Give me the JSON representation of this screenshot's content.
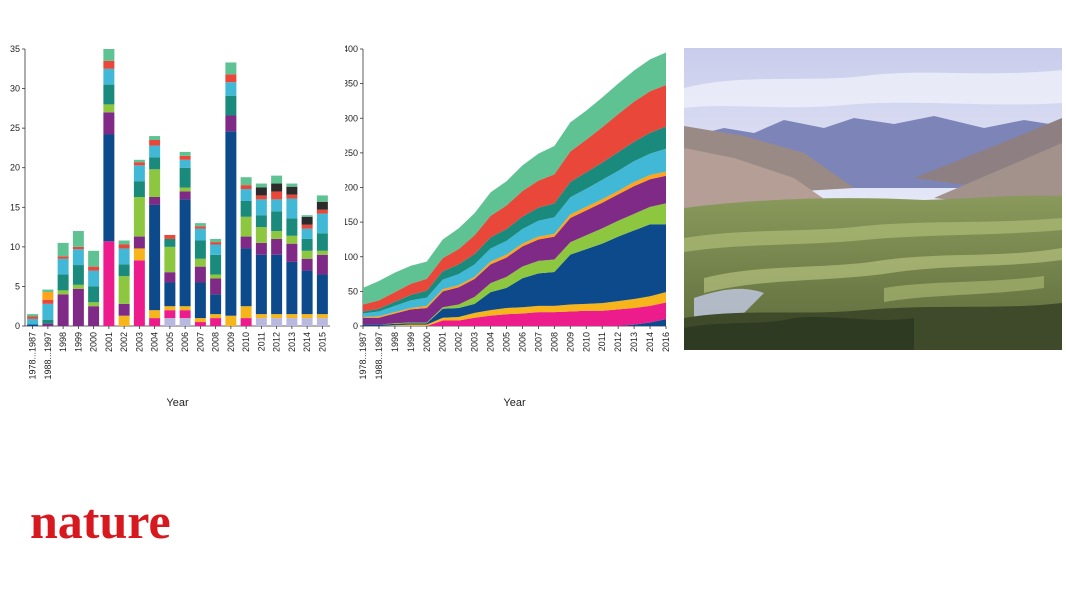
{
  "brand": {
    "logo_text": "nature",
    "logo_color": "#d7191f"
  },
  "photo": {
    "subject": "terraced-valley-landscape"
  },
  "chart_data": [
    {
      "type": "bar",
      "stacked": true,
      "xlabel": "Year",
      "ylabel": "",
      "ylim": [
        0,
        35
      ],
      "yticks": [
        0,
        5,
        10,
        15,
        20,
        25,
        30,
        35
      ],
      "categories": [
        "1978...1987",
        "1988...1997",
        "1998",
        "1999",
        "2000",
        "2001",
        "2002",
        "2003",
        "2004",
        "2005",
        "2006",
        "2007",
        "2008",
        "2009",
        "2010",
        "2011",
        "2012",
        "2013",
        "2014",
        "2015"
      ],
      "palette": [
        "#b9b9e0",
        "#ec1c8c",
        "#f7b51c",
        "#0c4a8c",
        "#7e2a86",
        "#8dc63f",
        "#1a8a7c",
        "#41b8d5",
        "#e8473a",
        "#2b2b2b",
        "#ffa31a",
        "#5ec293"
      ],
      "series": [
        {
          "values": [
            0,
            0,
            0,
            0,
            0,
            0,
            0,
            0,
            0,
            1,
            1,
            0,
            0,
            0,
            0,
            1,
            1,
            1,
            1,
            1
          ]
        },
        {
          "values": [
            0,
            0,
            0,
            0,
            0,
            10.7,
            0,
            8.3,
            1,
            1,
            1,
            0.5,
            1,
            0,
            1,
            0,
            0,
            0,
            0,
            0
          ]
        },
        {
          "values": [
            0,
            0,
            0,
            0,
            0,
            0,
            1.3,
            1.5,
            1,
            0.5,
            0.5,
            0.5,
            0.5,
            1.3,
            1.5,
            0.5,
            0.5,
            0.5,
            0.5,
            0.5
          ]
        },
        {
          "values": [
            0.2,
            0,
            0,
            0,
            0,
            13.5,
            0,
            0,
            13.3,
            3,
            13.5,
            4.5,
            2.5,
            23.3,
            7.3,
            7.5,
            7.5,
            6.6,
            5.5,
            5
          ]
        },
        {
          "values": [
            0,
            0.3,
            4,
            4.7,
            2.5,
            2.8,
            1.5,
            1.5,
            1,
            1.3,
            1,
            2,
            2,
            2,
            1.5,
            1.5,
            2,
            2.3,
            1.5,
            2.5
          ]
        },
        {
          "values": [
            0,
            0,
            0.5,
            0.5,
            0.5,
            1,
            3.5,
            5,
            3.5,
            3.2,
            0.5,
            1,
            0.5,
            0,
            2.5,
            2,
            1,
            1,
            1,
            0.5
          ]
        },
        {
          "values": [
            0,
            0.5,
            2,
            2.5,
            2,
            2.5,
            1.5,
            2,
            1.5,
            1,
            2.5,
            2.3,
            2.5,
            2.5,
            2,
            1.5,
            2.5,
            2.2,
            1.5,
            2.2
          ]
        },
        {
          "values": [
            0.7,
            2,
            2,
            2,
            2,
            2,
            2,
            2,
            1.5,
            0,
            1,
            1.5,
            1.3,
            1.7,
            1.5,
            2,
            1.5,
            2.5,
            1.3,
            2.5
          ]
        },
        {
          "values": [
            0.3,
            0.5,
            0.3,
            0.3,
            0.5,
            1,
            0.5,
            0.4,
            0.7,
            0.5,
            0.5,
            0.3,
            0.3,
            1,
            0.5,
            0.5,
            1,
            0.5,
            0.5,
            0.5
          ]
        },
        {
          "values": [
            0,
            0,
            0,
            0,
            0,
            0,
            0,
            0,
            0,
            0,
            0,
            0,
            0,
            0,
            0,
            1,
            1,
            1,
            1,
            1
          ]
        },
        {
          "values": [
            0,
            1,
            0,
            0,
            0,
            0,
            0,
            0,
            0,
            0,
            0,
            0,
            0,
            0,
            0,
            0,
            0,
            0,
            0,
            0
          ]
        },
        {
          "values": [
            0.3,
            0.3,
            1.7,
            2,
            2,
            1.5,
            0.5,
            0.3,
            0.5,
            0,
            0.5,
            0.4,
            0.4,
            1.5,
            1,
            0.5,
            1,
            0.4,
            0.2,
            0.8
          ]
        }
      ]
    },
    {
      "type": "area",
      "stacked": true,
      "xlabel": "Year",
      "ylabel": "",
      "ylim": [
        0,
        400
      ],
      "yticks": [
        0,
        50,
        100,
        150,
        200,
        250,
        300,
        350,
        400
      ],
      "categories": [
        "1978...1987",
        "1988...1997",
        "1998",
        "1999",
        "2000",
        "2001",
        "2002",
        "2003",
        "2004",
        "2005",
        "2006",
        "2007",
        "2008",
        "2009",
        "2010",
        "2011",
        "2012",
        "2013",
        "2014",
        "2016"
      ],
      "palette": [
        "#0c4a8c",
        "#ec1c8c",
        "#f7b51c",
        "#0c4a8c",
        "#7e2a86",
        "#8dc63f",
        "#1a8a7c",
        "#41b8d5",
        "#e8473a",
        "#ffa31a",
        "#5ec293"
      ],
      "layer_order": [
        0,
        1,
        2,
        3,
        5,
        4,
        9,
        7,
        6,
        8,
        10
      ],
      "series": [
        {
          "values": [
            0,
            0,
            0,
            0,
            0,
            0,
            0,
            0,
            0,
            0,
            0,
            0,
            0,
            0,
            0,
            0,
            0,
            2,
            5,
            10
          ]
        },
        {
          "values": [
            0,
            0,
            0,
            0,
            0,
            8,
            8,
            12,
            15,
            17,
            18,
            20,
            20,
            21,
            22,
            22,
            24,
            24,
            24,
            24
          ]
        },
        {
          "values": [
            0,
            0,
            1,
            2,
            2,
            4,
            5,
            7,
            8,
            9,
            9,
            9,
            9,
            10,
            10,
            11,
            12,
            13,
            14,
            15
          ]
        },
        {
          "values": [
            2,
            2,
            2,
            2,
            2,
            13,
            13,
            13,
            26,
            29,
            42,
            47,
            49,
            72,
            79,
            86,
            93,
            99,
            104,
            98
          ]
        },
        {
          "values": [
            10,
            10,
            14,
            19,
            21,
            23,
            25,
            26,
            27,
            28,
            29,
            31,
            33,
            35,
            36,
            37,
            38,
            40,
            40,
            40
          ]
        },
        {
          "values": [
            0,
            0,
            1,
            1,
            1,
            2,
            5,
            10,
            13,
            16,
            17,
            18,
            18,
            18,
            20,
            22,
            23,
            24,
            25,
            30
          ]
        },
        {
          "values": [
            3,
            4,
            6,
            8,
            10,
            12,
            14,
            15,
            16,
            17,
            18,
            19,
            20,
            22,
            24,
            25,
            27,
            28,
            30,
            32
          ]
        },
        {
          "values": [
            5,
            7,
            9,
            11,
            12,
            14,
            16,
            18,
            19,
            20,
            21,
            23,
            24,
            25,
            26,
            28,
            29,
            30,
            31,
            33
          ]
        },
        {
          "values": [
            10,
            12,
            14,
            16,
            17,
            19,
            22,
            27,
            31,
            34,
            37,
            39,
            42,
            44,
            47,
            51,
            55,
            58,
            60,
            60
          ]
        },
        {
          "values": [
            1,
            2,
            2,
            2,
            3,
            3,
            3,
            3,
            4,
            4,
            4,
            4,
            4,
            5,
            5,
            5,
            5,
            6,
            6,
            6
          ]
        },
        {
          "values": [
            24,
            28,
            28,
            26,
            25,
            27,
            30,
            32,
            34,
            35,
            37,
            39,
            41,
            42,
            42,
            43,
            44,
            45,
            46,
            47
          ]
        }
      ]
    }
  ]
}
